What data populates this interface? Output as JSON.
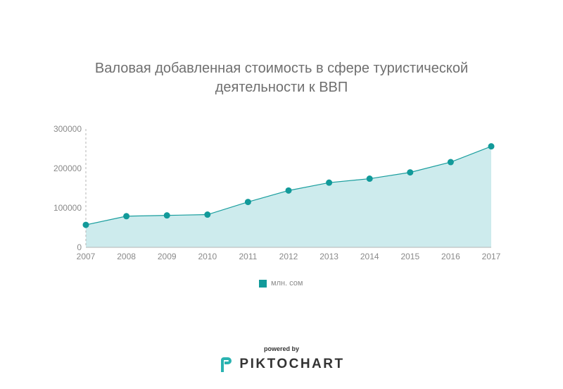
{
  "colors": {
    "line": "#1a9e9e",
    "area": "#cdebed",
    "marker": "#129a9a",
    "axis": "#b5b5b5",
    "title_text": "#6f6f6f",
    "tick_text": "#8a8a8a",
    "brand": "#2ab3b1"
  },
  "chart_data": {
    "type": "area",
    "title": "Валовая добавленная стоимость в сфере туристической деятельности к ВВП",
    "title_lines": [
      "Валовая добавленная стоимость в сфере туристической",
      "деятельности к ВВП"
    ],
    "x": [
      "2007",
      "2008",
      "2009",
      "2010",
      "2011",
      "2012",
      "2013",
      "2014",
      "2015",
      "2016",
      "2017"
    ],
    "series": [
      {
        "name": "млн. сом",
        "values": [
          57000,
          79000,
          81000,
          83000,
          115000,
          144000,
          164000,
          174000,
          190000,
          216000,
          256000
        ]
      }
    ],
    "ylim": [
      0,
      300000
    ],
    "yticks": [
      "0",
      "100000",
      "200000",
      "300000"
    ],
    "legend_position": "bottom",
    "grid": false
  },
  "footer": {
    "powered_by": "powered by",
    "brand_name": "PIKTOCHART",
    "brand_icon": "piktochart-logo-icon"
  }
}
